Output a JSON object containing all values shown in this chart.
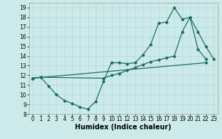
{
  "xlabel": "Humidex (Indice chaleur)",
  "xlim": [
    -0.5,
    23.5
  ],
  "ylim": [
    8,
    19.5
  ],
  "xticks": [
    0,
    1,
    2,
    3,
    4,
    5,
    6,
    7,
    8,
    9,
    10,
    11,
    12,
    13,
    14,
    15,
    16,
    17,
    18,
    19,
    20,
    21,
    22,
    23
  ],
  "yticks": [
    8,
    9,
    10,
    11,
    12,
    13,
    14,
    15,
    16,
    17,
    18,
    19
  ],
  "bg_color": "#cdeaea",
  "line_color": "#1a6b5a",
  "line1_x": [
    0,
    1,
    2,
    3,
    4,
    5,
    6,
    7,
    8,
    9,
    10,
    11,
    12,
    13,
    14,
    15,
    16,
    17,
    18,
    19,
    20,
    21,
    22
  ],
  "line1_y": [
    11.7,
    11.8,
    10.9,
    10.0,
    9.4,
    9.1,
    8.7,
    8.5,
    9.3,
    11.4,
    13.3,
    13.3,
    13.2,
    13.3,
    14.1,
    15.2,
    17.4,
    17.5,
    19.0,
    17.8,
    18.0,
    14.7,
    13.7
  ],
  "line2_x": [
    0,
    22
  ],
  "line2_y": [
    11.7,
    13.3
  ],
  "line3_x": [
    0,
    1,
    9,
    10,
    11,
    12,
    13,
    14,
    15,
    16,
    17,
    18,
    19,
    20,
    21,
    22,
    23
  ],
  "line3_y": [
    11.7,
    11.8,
    11.7,
    12.0,
    12.2,
    12.5,
    12.8,
    13.1,
    13.4,
    13.6,
    13.8,
    14.0,
    16.5,
    18.0,
    16.5,
    15.0,
    13.7
  ],
  "tick_fontsize": 5.5,
  "xlabel_fontsize": 7,
  "grid_color": "#afd8d8"
}
